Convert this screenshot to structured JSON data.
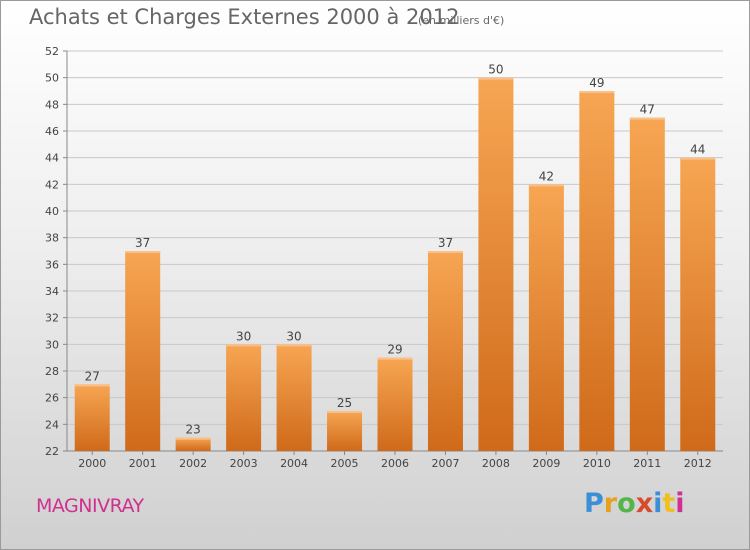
{
  "header": {
    "title": "Achats et Charges Externes 2000 à 2012",
    "subtitle": "(en milliers d'€)"
  },
  "footer": {
    "place": "MAGNIVRAY",
    "brand": "Proxiti",
    "brand_colors": [
      "#3b8fd6",
      "#e6a21c",
      "#55b548",
      "#d84a2a",
      "#3b8fd6",
      "#f0c020",
      "#d0308f"
    ]
  },
  "colors": {
    "bar_light": "#f7a653",
    "bar_dark": "#cf6a1a",
    "grid": "#c8c8c8",
    "text": "#444444"
  },
  "chart_data": {
    "type": "bar",
    "title": "Achats et Charges Externes 2000 à 2012",
    "subtitle": "(en milliers d'€)",
    "categories": [
      "2000",
      "2001",
      "2002",
      "2003",
      "2004",
      "2005",
      "2006",
      "2007",
      "2008",
      "2009",
      "2010",
      "2011",
      "2012"
    ],
    "values": [
      27,
      37,
      23,
      30,
      30,
      25,
      29,
      37,
      50,
      42,
      49,
      47,
      44
    ],
    "ylim": [
      22,
      52
    ],
    "yticks": [
      22,
      24,
      26,
      28,
      30,
      32,
      34,
      36,
      38,
      40,
      42,
      44,
      46,
      48,
      50,
      52
    ],
    "grid": true,
    "xlabel": "",
    "ylabel": ""
  }
}
